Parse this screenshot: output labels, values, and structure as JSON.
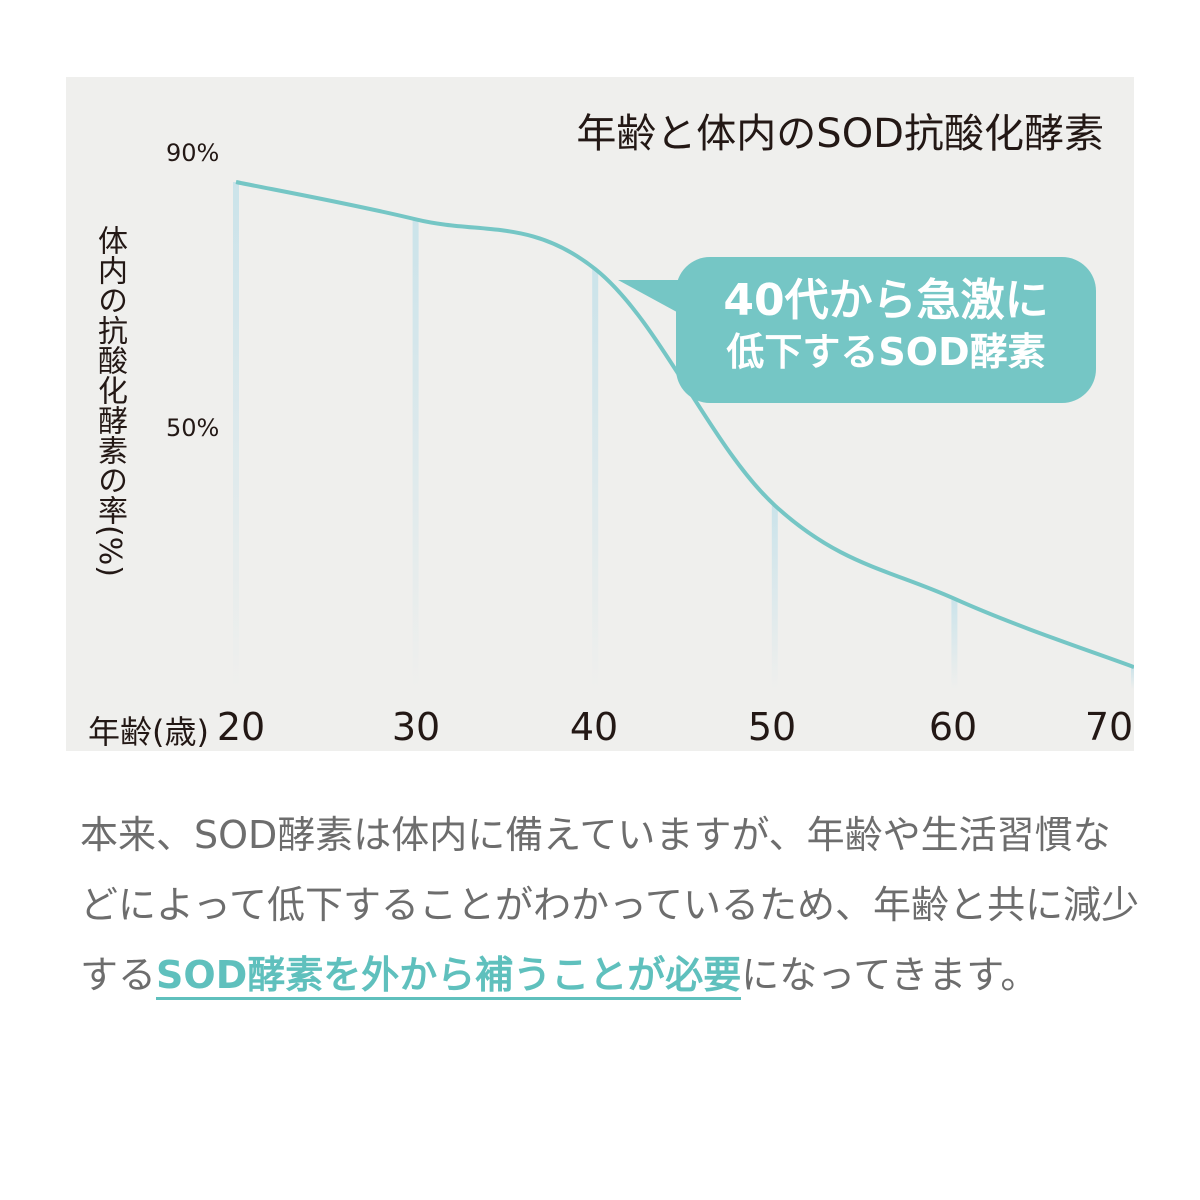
{
  "chart_data": {
    "type": "line",
    "title": "年齢と体内のSOD抗酸化酵素",
    "xlabel": "年齢(歳)",
    "ylabel": "体内の抗酸化酵素の率(%)",
    "x": [
      20,
      30,
      40,
      50,
      60,
      70
    ],
    "x_tick_labels": [
      "20",
      "30",
      "40",
      "50",
      "60",
      "70"
    ],
    "y_tick_labels": [
      "90%",
      "50%"
    ],
    "y_ticks": [
      90,
      50
    ],
    "series": [
      {
        "values": [
          90,
          84,
          76,
          38,
          23,
          12
        ]
      }
    ],
    "xlim": [
      20,
      70
    ],
    "ylim": [
      8,
      90
    ],
    "line_color": "#75c6c5",
    "annotation": {
      "line1": "40代から急激に",
      "line2": "低下するSOD酵素",
      "color": "#75c6c5"
    }
  },
  "description": {
    "text_before": "本来、SOD酵素は体内に備えていますが、年齢や生活習慣などによって低下することがわかっているため、年齢と共に減少する",
    "highlight": "SOD酵素を外から補うことが必要",
    "text_after": "になってきます。",
    "highlight_color": "#5fc0bd"
  }
}
